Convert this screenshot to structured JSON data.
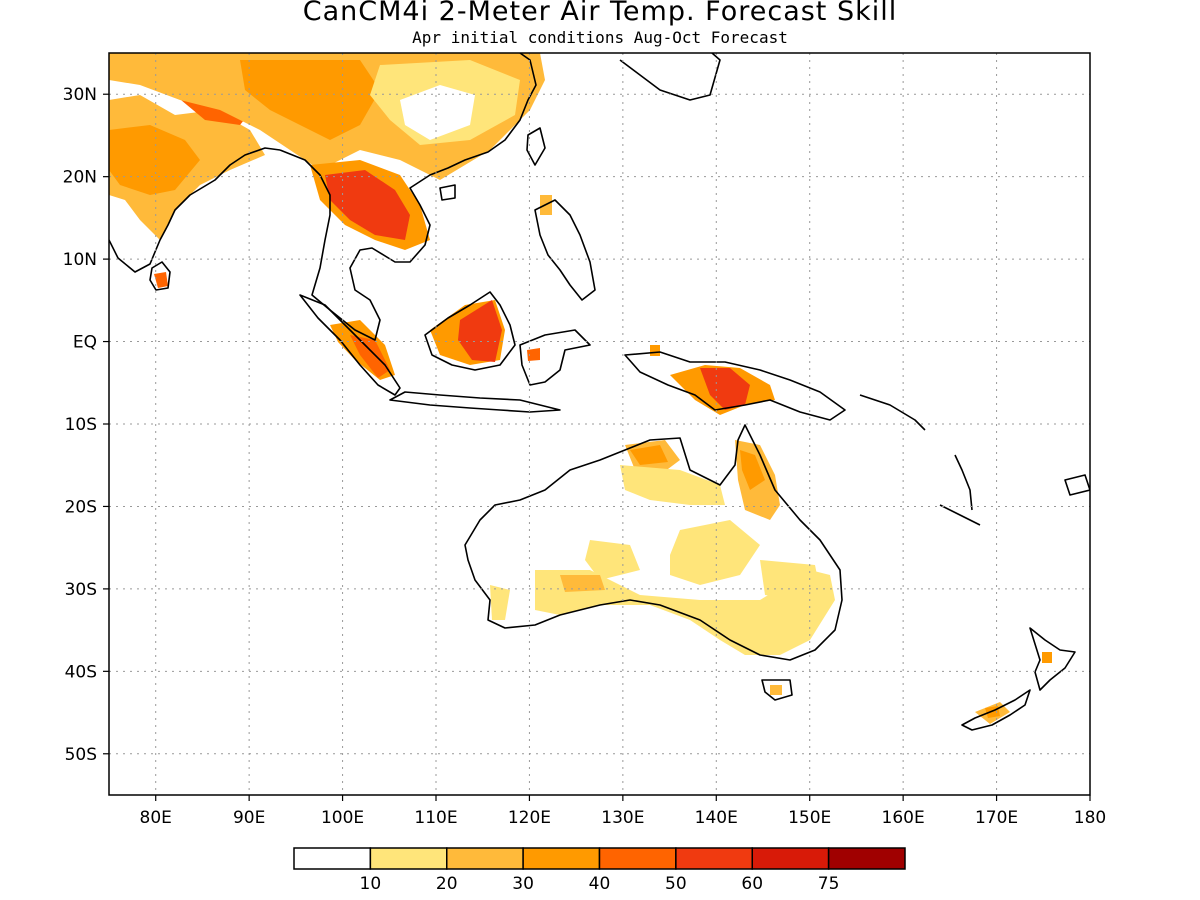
{
  "header": {
    "title": "CanCM4i 2-Meter Air Temp. Forecast Skill",
    "subtitle": "Apr initial conditions  Aug-Oct Forecast"
  },
  "map": {
    "lon_range": [
      75,
      180
    ],
    "lat_range": [
      -55,
      35
    ],
    "x_ticks": [
      {
        "lon": 80,
        "label": "80E"
      },
      {
        "lon": 90,
        "label": "90E"
      },
      {
        "lon": 100,
        "label": "100E"
      },
      {
        "lon": 110,
        "label": "110E"
      },
      {
        "lon": 120,
        "label": "120E"
      },
      {
        "lon": 130,
        "label": "130E"
      },
      {
        "lon": 140,
        "label": "140E"
      },
      {
        "lon": 150,
        "label": "150E"
      },
      {
        "lon": 160,
        "label": "160E"
      },
      {
        "lon": 170,
        "label": "170E"
      },
      {
        "lon": 180,
        "label": "180"
      }
    ],
    "y_ticks": [
      {
        "lat": 30,
        "label": "30N"
      },
      {
        "lat": 20,
        "label": "20N"
      },
      {
        "lat": 10,
        "label": "10N"
      },
      {
        "lat": 0,
        "label": "EQ"
      },
      {
        "lat": -10,
        "label": "10S"
      },
      {
        "lat": -20,
        "label": "20S"
      },
      {
        "lat": -30,
        "label": "30S"
      },
      {
        "lat": -40,
        "label": "40S"
      },
      {
        "lat": -50,
        "label": "50S"
      }
    ],
    "grid": true
  },
  "legend": {
    "colors": [
      "#ffffff",
      "#ffe57a",
      "#ffba3a",
      "#ff9a00",
      "#ff6400",
      "#f03a10",
      "#d81a08",
      "#a00000"
    ],
    "labels": [
      "10",
      "20",
      "30",
      "40",
      "50",
      "60",
      "75"
    ]
  }
}
